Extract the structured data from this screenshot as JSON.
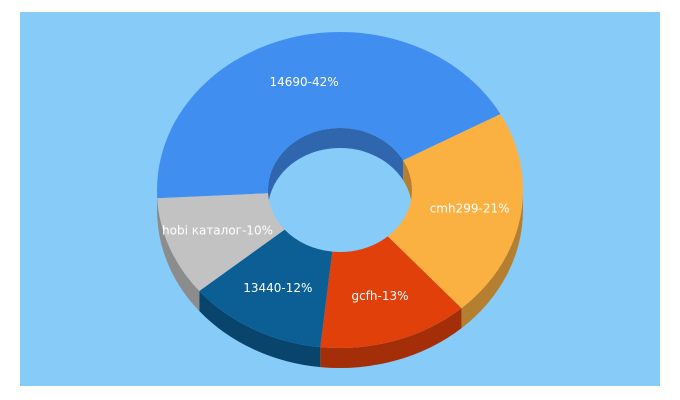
{
  "chart_data": {
    "type": "pie",
    "style": "donut-3d",
    "title": "",
    "slices": [
      {
        "label": "14690",
        "value": 42,
        "display": "14690-42%",
        "color": "#418ef1",
        "label_color": "#ffffff"
      },
      {
        "label": "cmh299",
        "value": 21,
        "display": "cmh299-21%",
        "color": "#fbb142",
        "label_color": "#ffffff"
      },
      {
        "label": "gcfh",
        "value": 13,
        "display": "gcfh-13%",
        "color": "#e2400b",
        "label_color": "#ffffff"
      },
      {
        "label": "13440",
        "value": 12,
        "display": "13440-12%",
        "color": "#0b5f94",
        "label_color": "#ffffff"
      },
      {
        "label": "hobi каталог",
        "value": 10,
        "display": "hobi каталог-10%",
        "color": "#c2c2c2",
        "label_color": "#ffffff"
      }
    ],
    "background_color": "#87cbf8"
  }
}
